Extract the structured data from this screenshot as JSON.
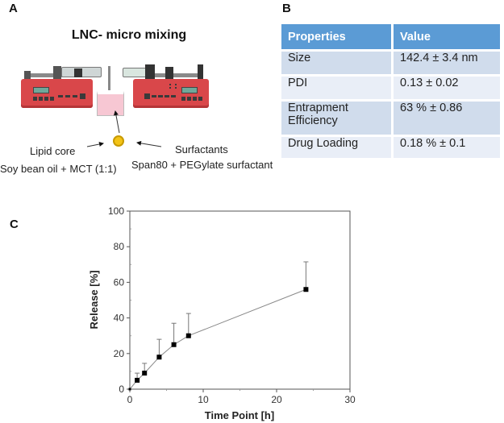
{
  "panels": {
    "a": {
      "label": "A",
      "title": "LNC- micro mixing",
      "lipid_core_label": "Lipid core",
      "lipid_core_detail": "Soy bean oil + MCT  (1:1)",
      "surfactants_label": "Surfactants",
      "surfactants_detail": "Span80 + PEGylate surfactant",
      "icons": [
        "syringe-pump-left-icon",
        "syringe-pump-right-icon",
        "beaker-icon",
        "lipid-nanocapsule-icon",
        "arrow-icon"
      ]
    },
    "b": {
      "label": "B",
      "table": {
        "headers": [
          "Properties",
          "Value"
        ],
        "rows": [
          {
            "property": "Size",
            "value": "142.4 ± 3.4 nm"
          },
          {
            "property": "PDI",
            "value": "0.13 ± 0.02"
          },
          {
            "property": "Entrapment Efficiency",
            "value": "63 % ± 0.86"
          },
          {
            "property": "Drug Loading",
            "value": "0.18 % ± 0.1"
          }
        ],
        "colors": {
          "header": "#5b9bd5",
          "row_odd": "#d0dcec",
          "row_even": "#e9eef7"
        }
      }
    },
    "c": {
      "label": "C"
    }
  },
  "chart_data": {
    "type": "line",
    "title": "",
    "xlabel": "Time Point [h]",
    "ylabel": "Release [%]",
    "xlim": [
      0,
      30
    ],
    "ylim": [
      0,
      100
    ],
    "xticks": [
      0,
      10,
      20,
      30
    ],
    "yticks": [
      0,
      20,
      40,
      60,
      80,
      100
    ],
    "grid": false,
    "legend": null,
    "marker": "square",
    "series": [
      {
        "name": "Release",
        "x": [
          0,
          1,
          2,
          4,
          6,
          8,
          24
        ],
        "values": [
          0,
          5,
          9,
          18,
          25,
          30,
          56
        ],
        "error_upper": [
          0,
          4,
          5.5,
          10,
          12,
          12.5,
          15.5
        ]
      }
    ]
  }
}
